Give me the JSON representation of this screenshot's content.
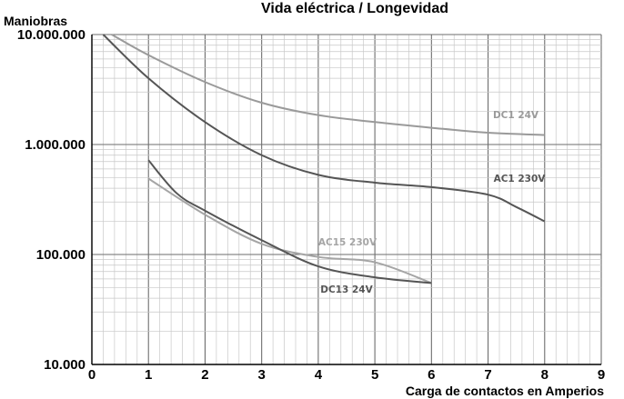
{
  "chart_data": {
    "type": "line",
    "title": "Vida eléctrica / Longevidad",
    "ylabel": "Maniobras",
    "xlabel": "Carga de contactos en Amperios",
    "x_ticks": [
      "0",
      "1",
      "2",
      "3",
      "4",
      "5",
      "6",
      "7",
      "8",
      "9"
    ],
    "y_ticks": [
      "10.000",
      "100.000",
      "1.000.000",
      "10.000.000"
    ],
    "xlim": [
      0,
      9
    ],
    "ylim": [
      10000,
      10000000
    ],
    "y_scale": "log",
    "grid": true,
    "series": [
      {
        "name": "DC1 24V",
        "color": "#9a9a9a",
        "x": [
          0.35,
          1,
          2,
          3,
          4,
          5,
          6,
          7,
          8
        ],
        "y": [
          10000000,
          6500000,
          3700000,
          2400000,
          1850000,
          1600000,
          1420000,
          1280000,
          1220000
        ]
      },
      {
        "name": "AC1 230V",
        "color": "#555555",
        "x": [
          0.2,
          1,
          2,
          3,
          4,
          5,
          6,
          7,
          7.5,
          8
        ],
        "y": [
          10000000,
          4000000,
          1600000,
          800000,
          530000,
          450000,
          410000,
          350000,
          270000,
          200000
        ]
      },
      {
        "name": "AC15 230V",
        "color": "#a5a5a5",
        "x": [
          1,
          2,
          3,
          4,
          5,
          6
        ],
        "y": [
          490000,
          230000,
          125000,
          95000,
          85000,
          55000
        ]
      },
      {
        "name": "DC13 24V",
        "color": "#555555",
        "x": [
          1,
          1.5,
          2,
          3,
          4,
          5,
          6
        ],
        "y": [
          720000,
          360000,
          250000,
          135000,
          78000,
          62000,
          55000
        ]
      }
    ]
  }
}
